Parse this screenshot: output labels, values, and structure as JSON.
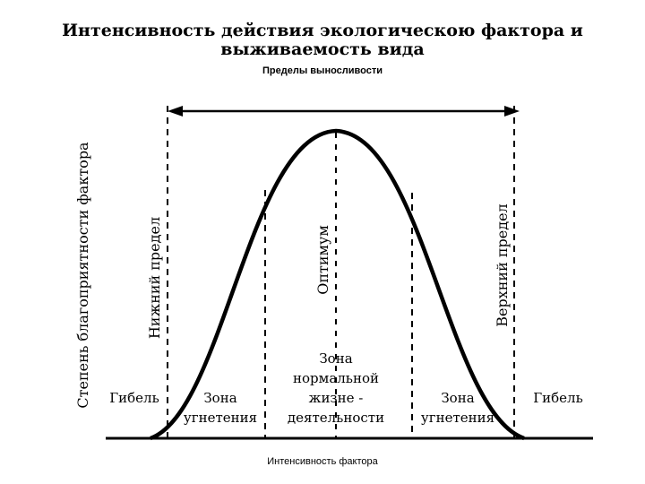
{
  "title_line1": "Интенсивность действия экологическою фактора и",
  "title_line2": "выживаемость вида",
  "subtitle": "Пределы выносливости",
  "x_axis_label": "Интенсивность фактора",
  "y_axis_label": "Степень благоприятности фактора",
  "lower_limit_label": "Нижний предел",
  "upper_limit_label": "Верхний предел",
  "optimum_label": "Оптимум",
  "zones": {
    "death_left": "Гибель",
    "death_right": "Гибель",
    "oppression_left": [
      "Зона",
      "угнетения"
    ],
    "normal": [
      "Зона",
      "нормальной",
      "жизне -",
      "деятельности"
    ],
    "oppression_right": [
      "Зона",
      "угнетения"
    ]
  },
  "colors": {
    "ink": "#000000",
    "background": "#ffffff"
  }
}
